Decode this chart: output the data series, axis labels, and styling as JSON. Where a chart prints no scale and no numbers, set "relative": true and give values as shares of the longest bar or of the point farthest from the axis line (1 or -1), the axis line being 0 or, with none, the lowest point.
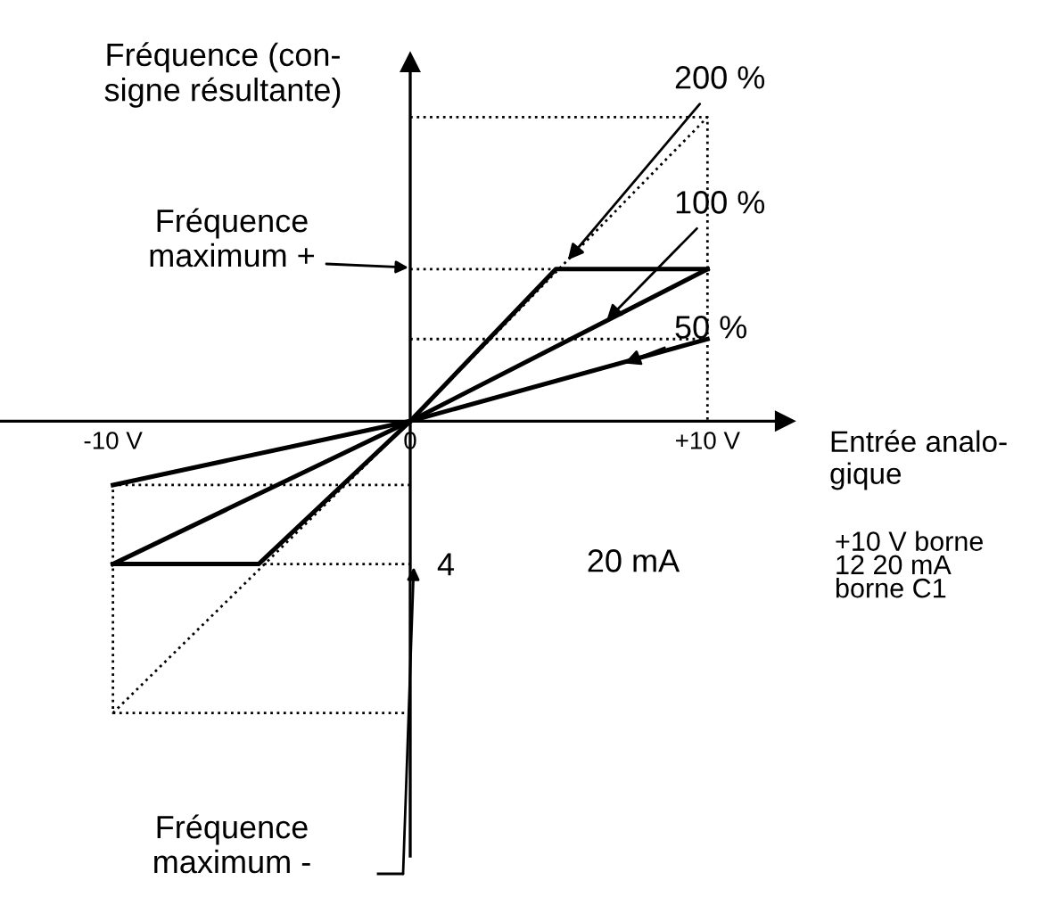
{
  "chart_data": {
    "type": "line",
    "relative": true,
    "xlabel": "Entrée analo-\ngique",
    "ylabel": "Fréquence (con-\nsigne résultante)",
    "xlim": [
      -13.8,
      12.6
    ],
    "xticks": [
      {
        "value": -10,
        "label": "-10 V"
      },
      {
        "value": 0,
        "label": "0"
      },
      {
        "value": 10,
        "label": "+10 V"
      }
    ],
    "series": [
      {
        "x": [
          -10,
          0,
          10
        ],
        "values": [
          -0.96,
          0,
          1
        ],
        "color": "#000000",
        "line_style": "dotted"
      },
      {
        "x": [
          0,
          10,
          10
        ],
        "values": [
          1,
          1,
          0
        ],
        "color": "#000000",
        "line_style": "dotted"
      },
      {
        "x": [
          0,
          10
        ],
        "values": [
          0.5,
          0.5
        ],
        "color": "#000000",
        "line_style": "dotted"
      },
      {
        "x": [
          0,
          10
        ],
        "values": [
          0.27,
          0.27
        ],
        "color": "#000000",
        "line_style": "dotted"
      },
      {
        "x": [
          0,
          -10,
          -10,
          0
        ],
        "values": [
          -0.21,
          -0.21,
          -0.96,
          -0.96
        ],
        "color": "#000000",
        "line_style": "dotted"
      },
      {
        "x": [
          -10,
          0
        ],
        "values": [
          -0.47,
          -0.47
        ],
        "color": "#000000",
        "line_style": "dotted"
      },
      {
        "x": [
          -10,
          -5.1,
          0,
          4.9,
          10
        ],
        "values": [
          -0.47,
          -0.47,
          0,
          0.5,
          0.5
        ],
        "color": "#000000",
        "line_style": "solid"
      },
      {
        "x": [
          -10,
          0,
          10
        ],
        "values": [
          -0.47,
          0,
          0.5
        ],
        "color": "#000000",
        "line_style": "solid"
      },
      {
        "x": [
          -10,
          0,
          10
        ],
        "values": [
          -0.21,
          0,
          0.27
        ],
        "color": "#000000",
        "line_style": "solid"
      }
    ],
    "annotations": [
      {
        "text": "200 %",
        "x": 5.3,
        "y": 0.53
      },
      {
        "text": "100 %",
        "x": 6.6,
        "y": 0.33
      },
      {
        "text": "50 %",
        "x": 7.2,
        "y": 0.19
      },
      "Fréquence\nmaximum +",
      "Fréquence\nmaximum -",
      "4",
      "20 mA",
      "+10 V borne\n12 20 mA\nborne C1"
    ]
  }
}
